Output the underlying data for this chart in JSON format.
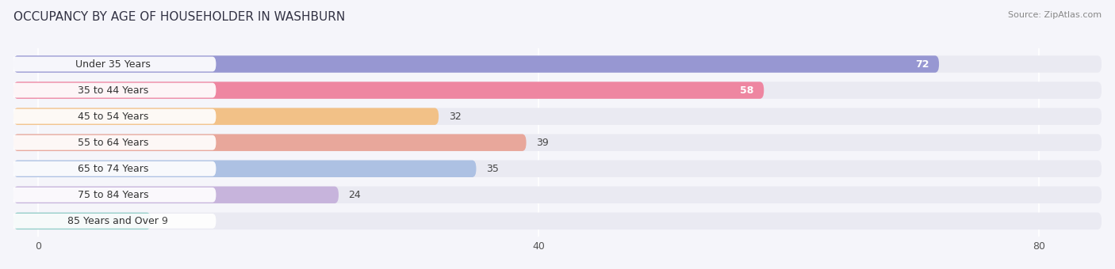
{
  "title": "OCCUPANCY BY AGE OF HOUSEHOLDER IN WASHBURN",
  "source": "Source: ZipAtlas.com",
  "categories": [
    "Under 35 Years",
    "35 to 44 Years",
    "45 to 54 Years",
    "55 to 64 Years",
    "65 to 74 Years",
    "75 to 84 Years",
    "85 Years and Over"
  ],
  "values": [
    72,
    58,
    32,
    39,
    35,
    24,
    9
  ],
  "bar_colors": [
    "#8585cc",
    "#f07090",
    "#f5b870",
    "#e89888",
    "#a0b8e0",
    "#c0a8d8",
    "#80c8c0"
  ],
  "bar_bg_color": "#eaeaf2",
  "xlim": [
    -2,
    85
  ],
  "xticks": [
    0,
    40,
    80
  ],
  "title_fontsize": 11,
  "label_fontsize": 9,
  "value_fontsize": 9,
  "bg_color": "#f5f5fa"
}
